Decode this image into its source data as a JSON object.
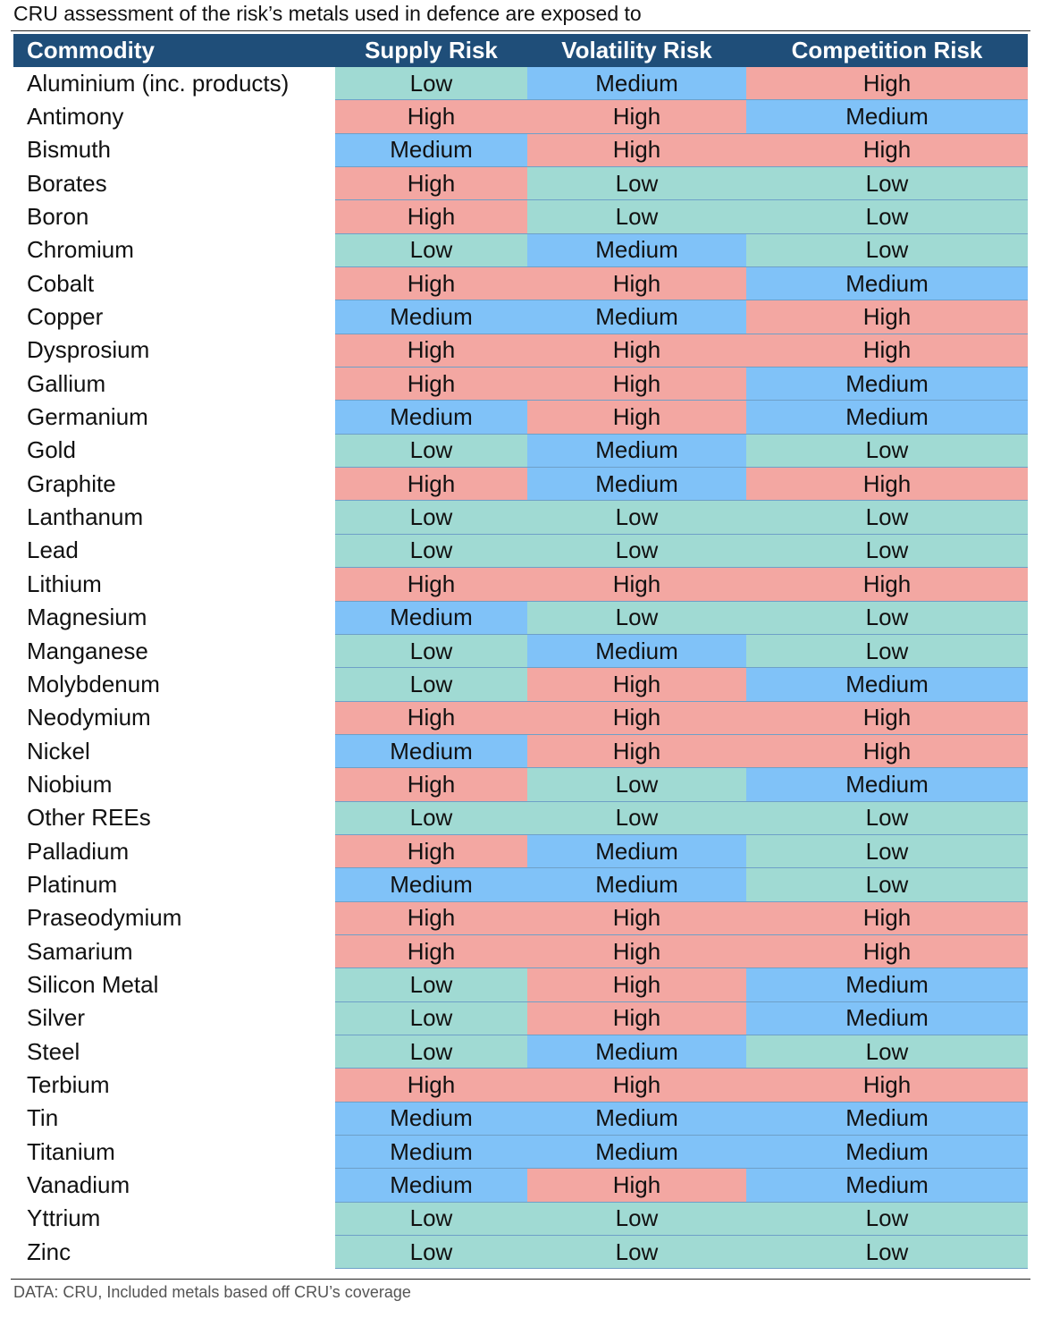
{
  "title": "CRU assessment of the risk’s metals used in defence are exposed to",
  "table": {
    "header": [
      "Commodity",
      "Supply Risk",
      "Volatility Risk",
      "Competition Risk"
    ],
    "cell_colors": {
      "Low": "#a0dad3",
      "Medium": "#80c2f8",
      "High": "#f3a7a2"
    },
    "rows": [
      [
        "Aluminium (inc. products)",
        "Low",
        "Medium",
        "High"
      ],
      [
        "Antimony",
        "High",
        "High",
        "Medium"
      ],
      [
        "Bismuth",
        "Medium",
        "High",
        "High"
      ],
      [
        "Borates",
        "High",
        "Low",
        "Low"
      ],
      [
        "Boron",
        "High",
        "Low",
        "Low"
      ],
      [
        "Chromium",
        "Low",
        "Medium",
        "Low"
      ],
      [
        "Cobalt",
        "High",
        "High",
        "Medium"
      ],
      [
        "Copper",
        "Medium",
        "Medium",
        "High"
      ],
      [
        "Dysprosium",
        "High",
        "High",
        "High"
      ],
      [
        "Gallium",
        "High",
        "High",
        "Medium"
      ],
      [
        "Germanium",
        "Medium",
        "High",
        "Medium"
      ],
      [
        "Gold",
        "Low",
        "Medium",
        "Low"
      ],
      [
        "Graphite",
        "High",
        "Medium",
        "High"
      ],
      [
        "Lanthanum",
        "Low",
        "Low",
        "Low"
      ],
      [
        "Lead",
        "Low",
        "Low",
        "Low"
      ],
      [
        "Lithium",
        "High",
        "High",
        "High"
      ],
      [
        "Magnesium",
        "Medium",
        "Low",
        "Low"
      ],
      [
        "Manganese",
        "Low",
        "Medium",
        "Low"
      ],
      [
        "Molybdenum",
        "Low",
        "High",
        "Medium"
      ],
      [
        "Neodymium",
        "High",
        "High",
        "High"
      ],
      [
        "Nickel",
        "Medium",
        "High",
        "High"
      ],
      [
        "Niobium",
        "High",
        "Low",
        "Medium"
      ],
      [
        "Other REEs",
        "Low",
        "Low",
        "Low"
      ],
      [
        "Palladium",
        "High",
        "Medium",
        "Low"
      ],
      [
        "Platinum",
        "Medium",
        "Medium",
        "Low"
      ],
      [
        "Praseodymium",
        "High",
        "High",
        "High"
      ],
      [
        "Samarium",
        "High",
        "High",
        "High"
      ],
      [
        "Silicon Metal",
        "Low",
        "High",
        "Medium"
      ],
      [
        "Silver",
        "Low",
        "High",
        "Medium"
      ],
      [
        "Steel",
        "Low",
        "Medium",
        "Low"
      ],
      [
        "Terbium",
        "High",
        "High",
        "High"
      ],
      [
        "Tin",
        "Medium",
        "Medium",
        "Medium"
      ],
      [
        "Titanium",
        "Medium",
        "Medium",
        "Medium"
      ],
      [
        "Vanadium",
        "Medium",
        "High",
        "Medium"
      ],
      [
        "Yttrium",
        "Low",
        "Low",
        "Low"
      ],
      [
        "Zinc",
        "Low",
        "Low",
        "Low"
      ]
    ]
  },
  "source": "DATA: CRU, Included metals based off CRU’s coverage"
}
